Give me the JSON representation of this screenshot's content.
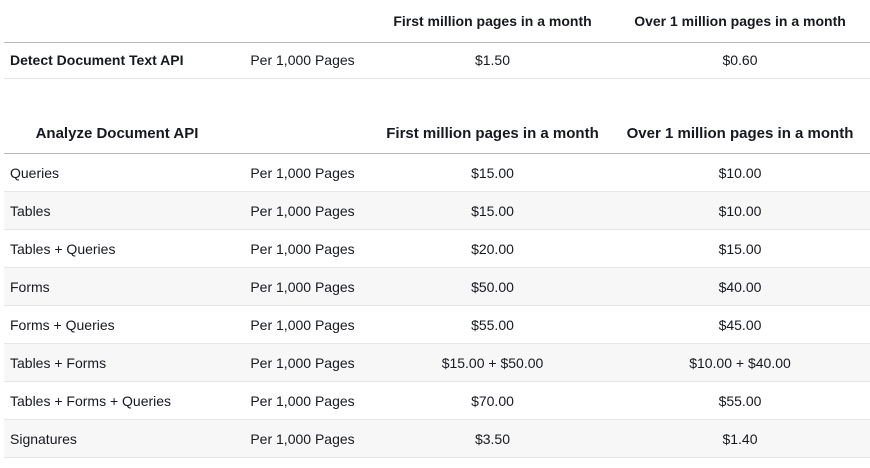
{
  "colors": {
    "page_bg": "#ffffff",
    "text": "#16191f",
    "header_divider": "#b8b8b8",
    "row_divider": "#e6e6e6",
    "zebra_row_bg": "#f7f7f7"
  },
  "detect_table": {
    "columns": [
      "",
      "",
      "First million pages in a month",
      "Over 1 million pages in a month"
    ],
    "rows": [
      {
        "feature": "Detect Document Text API",
        "unit": "Per 1,000 Pages",
        "first_million": "$1.50",
        "over_million": "$0.60"
      }
    ]
  },
  "analyze_table": {
    "columns": [
      "Analyze Document API",
      "",
      "First million pages in a month",
      "Over 1 million pages in a month"
    ],
    "rows": [
      {
        "feature": "Queries",
        "unit": "Per 1,000 Pages",
        "first_million": "$15.00",
        "over_million": "$10.00"
      },
      {
        "feature": "Tables",
        "unit": "Per 1,000 Pages",
        "first_million": "$15.00",
        "over_million": "$10.00"
      },
      {
        "feature": "Tables + Queries",
        "unit": "Per 1,000 Pages",
        "first_million": "$20.00",
        "over_million": "$15.00"
      },
      {
        "feature": "Forms",
        "unit": "Per 1,000 Pages",
        "first_million": "$50.00",
        "over_million": "$40.00"
      },
      {
        "feature": "Forms + Queries",
        "unit": "Per 1,000 Pages",
        "first_million": "$55.00",
        "over_million": "$45.00"
      },
      {
        "feature": "Tables + Forms",
        "unit": "Per 1,000 Pages",
        "first_million": "$15.00 + $50.00",
        "over_million": "$10.00 + $40.00"
      },
      {
        "feature": "Tables + Forms + Queries",
        "unit": "Per 1,000 Pages",
        "first_million": "$70.00",
        "over_million": "$55.00"
      },
      {
        "feature": "Signatures",
        "unit": "Per 1,000 Pages",
        "first_million": "$3.50",
        "over_million": "$1.40"
      }
    ]
  },
  "chart_data": [
    {
      "type": "table",
      "title": "Detect Document Text API",
      "columns": [
        "",
        "",
        "First million pages in a month",
        "Over 1 million pages in a month"
      ],
      "rows": [
        [
          "Detect Document Text API",
          "Per 1,000 Pages",
          "$1.50",
          "$0.60"
        ]
      ]
    },
    {
      "type": "table",
      "title": "Analyze Document API",
      "columns": [
        "Analyze Document API",
        "",
        "First million pages in a month",
        "Over 1 million pages in a month"
      ],
      "rows": [
        [
          "Queries",
          "Per 1,000 Pages",
          "$15.00",
          "$10.00"
        ],
        [
          "Tables",
          "Per 1,000 Pages",
          "$15.00",
          "$10.00"
        ],
        [
          "Tables + Queries",
          "Per 1,000 Pages",
          "$20.00",
          "$15.00"
        ],
        [
          "Forms",
          "Per 1,000 Pages",
          "$50.00",
          "$40.00"
        ],
        [
          "Forms + Queries",
          "Per 1,000 Pages",
          "$55.00",
          "$45.00"
        ],
        [
          "Tables + Forms",
          "Per 1,000 Pages",
          "$15.00 + $50.00",
          "$10.00 + $40.00"
        ],
        [
          "Tables + Forms + Queries",
          "Per 1,000 Pages",
          "$70.00",
          "$55.00"
        ],
        [
          "Signatures",
          "Per 1,000 Pages",
          "$3.50",
          "$1.40"
        ]
      ]
    }
  ]
}
